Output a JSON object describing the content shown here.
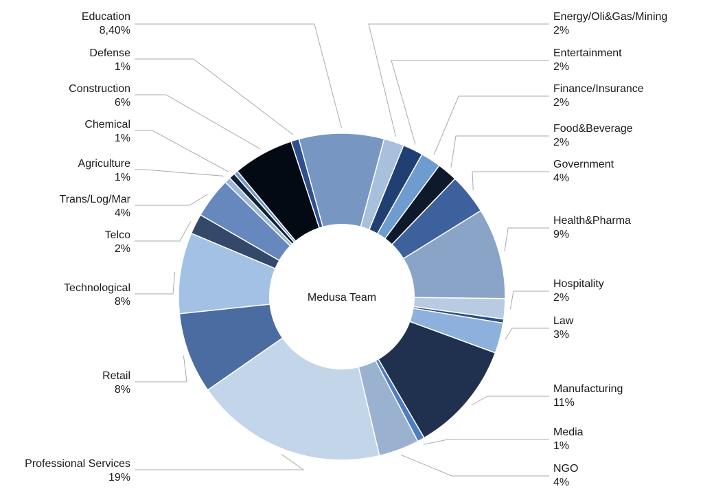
{
  "chart_data": {
    "type": "pie",
    "center_label": "Medusa Team",
    "slices": [
      {
        "label": "Energy/Oli&Gas/Mining",
        "value_label": "2%",
        "value": 2,
        "color": "#a8c0dc"
      },
      {
        "label": "Entertainment",
        "value_label": "2%",
        "value": 2,
        "color": "#203f72"
      },
      {
        "label": "Finance/Insurance",
        "value_label": "2%",
        "value": 2,
        "color": "#6e9bd0"
      },
      {
        "label": "Food&Beverage",
        "value_label": "2%",
        "value": 2,
        "color": "#0e1a2b"
      },
      {
        "label": "Government",
        "value_label": "4%",
        "value": 4,
        "color": "#3c619c"
      },
      {
        "label": "Health&Pharma",
        "value_label": "9%",
        "value": 9,
        "color": "#8aa4c8"
      },
      {
        "label": "Hospitality",
        "value_label": "2%",
        "value": 2,
        "color": "#b9cbe3"
      },
      {
        "label": "",
        "value_label": "",
        "value": 0.4,
        "color": "#2d4f84"
      },
      {
        "label": "Law",
        "value_label": "3%",
        "value": 3,
        "color": "#8db1dc"
      },
      {
        "label": "Manufacturing",
        "value_label": "11%",
        "value": 11,
        "color": "#1f314e"
      },
      {
        "label": "Media",
        "value_label": "1%",
        "value": 0.7,
        "color": "#4e7ec0"
      },
      {
        "label": "NGO",
        "value_label": "4%",
        "value": 4,
        "color": "#9bb1d0"
      },
      {
        "label": "Professional Services",
        "value_label": "19%",
        "value": 19,
        "color": "#c3d5e9"
      },
      {
        "label": "Retail",
        "value_label": "8%",
        "value": 8,
        "color": "#4a6ca1"
      },
      {
        "label": "Technological",
        "value_label": "8%",
        "value": 8,
        "color": "#a3c1e4"
      },
      {
        "label": "Telco",
        "value_label": "2%",
        "value": 2,
        "color": "#34496a"
      },
      {
        "label": "Trans/Log/Mar",
        "value_label": "4%",
        "value": 4,
        "color": "#6688be"
      },
      {
        "label": "Agriculture",
        "value_label": "1%",
        "value": 0.6,
        "color": "#9db7d8"
      },
      {
        "label": "Chemical",
        "value_label": "1%",
        "value": 0.6,
        "color": "#112138"
      },
      {
        "label": "",
        "value_label": "",
        "value": 0.4,
        "color": "#6f95c9"
      },
      {
        "label": "Construction",
        "value_label": "6%",
        "value": 6,
        "color": "#030a14"
      },
      {
        "label": "Defense",
        "value_label": "1%",
        "value": 0.8,
        "color": "#2f5090"
      },
      {
        "label": "Education",
        "value_label": "8,40%",
        "value": 8.4,
        "color": "#7896c2"
      }
    ]
  }
}
